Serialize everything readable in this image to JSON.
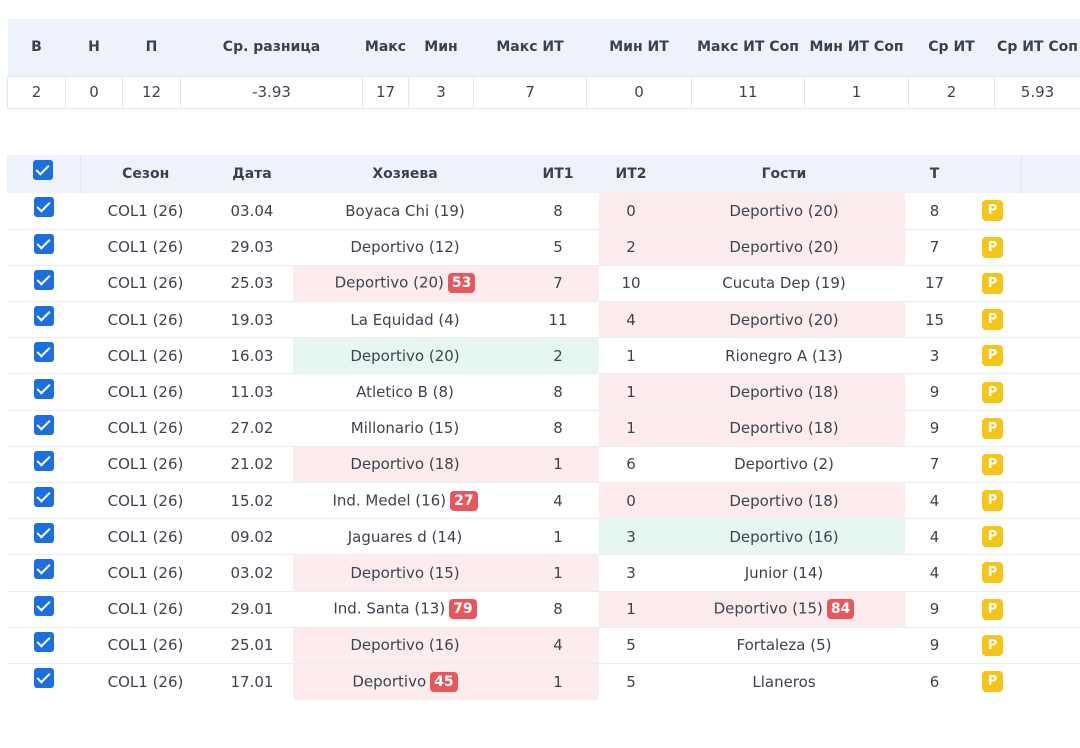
{
  "summary": {
    "headers": [
      "В",
      "Н",
      "П",
      "Ср. разница",
      "Макс",
      "Мин",
      "Макс ИТ",
      "Мин ИТ",
      "Макс ИТ Соп",
      "Мин ИТ Соп",
      "Ср ИТ",
      "Ср ИТ Соп"
    ],
    "values": [
      "2",
      "0",
      "12",
      "-3.93",
      "17",
      "3",
      "7",
      "0",
      "11",
      "1",
      "2",
      "5.93"
    ]
  },
  "matches": {
    "headers": {
      "season": "Сезон",
      "date": "Дата",
      "home": "Хозяева",
      "it1": "ИТ1",
      "it2": "ИТ2",
      "away": "Гости",
      "total": "Т"
    },
    "p_label": "P",
    "colors": {
      "highlight_red": "#fdeced",
      "highlight_green": "#e6f7f1",
      "badge_red": "#e8575c",
      "p_badge": "#f5c518",
      "checkbox": "#1b6fe0"
    },
    "rows": [
      {
        "season": "COL1 (26)",
        "date": "03.04",
        "home": "Boyaca Chi (19)",
        "home_badge": "",
        "it1": "8",
        "it2": "0",
        "away": "Deportivo  (20)",
        "away_badge": "",
        "total": "8",
        "highlight": "away",
        "highlight_color": "red"
      },
      {
        "season": "COL1 (26)",
        "date": "29.03",
        "home": "Deportivo  (12)",
        "home_badge": "",
        "it1": "5",
        "it2": "2",
        "away": "Deportivo  (20)",
        "away_badge": "",
        "total": "7",
        "highlight": "away",
        "highlight_color": "red"
      },
      {
        "season": "COL1 (26)",
        "date": "25.03",
        "home": "Deportivo  (20)",
        "home_badge": "53",
        "it1": "7",
        "it2": "10",
        "away": "Cucuta Dep (19)",
        "away_badge": "",
        "total": "17",
        "highlight": "home",
        "highlight_color": "red"
      },
      {
        "season": "COL1 (26)",
        "date": "19.03",
        "home": "La Equidad (4)",
        "home_badge": "",
        "it1": "11",
        "it2": "4",
        "away": "Deportivo  (20)",
        "away_badge": "",
        "total": "15",
        "highlight": "away",
        "highlight_color": "red"
      },
      {
        "season": "COL1 (26)",
        "date": "16.03",
        "home": "Deportivo  (20)",
        "home_badge": "",
        "it1": "2",
        "it2": "1",
        "away": "Rionegro A (13)",
        "away_badge": "",
        "total": "3",
        "highlight": "home",
        "highlight_color": "green"
      },
      {
        "season": "COL1 (26)",
        "date": "11.03",
        "home": "Atletico B (8)",
        "home_badge": "",
        "it1": "8",
        "it2": "1",
        "away": "Deportivo  (18)",
        "away_badge": "",
        "total": "9",
        "highlight": "away",
        "highlight_color": "red"
      },
      {
        "season": "COL1 (26)",
        "date": "27.02",
        "home": "Millonario (15)",
        "home_badge": "",
        "it1": "8",
        "it2": "1",
        "away": "Deportivo  (18)",
        "away_badge": "",
        "total": "9",
        "highlight": "away",
        "highlight_color": "red"
      },
      {
        "season": "COL1 (26)",
        "date": "21.02",
        "home": "Deportivo  (18)",
        "home_badge": "",
        "it1": "1",
        "it2": "6",
        "away": "Deportivo  (2)",
        "away_badge": "",
        "total": "7",
        "highlight": "home",
        "highlight_color": "red"
      },
      {
        "season": "COL1 (26)",
        "date": "15.02",
        "home": "Ind. Medel (16)",
        "home_badge": "27",
        "it1": "4",
        "it2": "0",
        "away": "Deportivo  (18)",
        "away_badge": "",
        "total": "4",
        "highlight": "away",
        "highlight_color": "red"
      },
      {
        "season": "COL1 (26)",
        "date": "09.02",
        "home": "Jaguares d (14)",
        "home_badge": "",
        "it1": "1",
        "it2": "3",
        "away": "Deportivo  (16)",
        "away_badge": "",
        "total": "4",
        "highlight": "away",
        "highlight_color": "green"
      },
      {
        "season": "COL1 (26)",
        "date": "03.02",
        "home": "Deportivo  (15)",
        "home_badge": "",
        "it1": "1",
        "it2": "3",
        "away": "Junior (14)",
        "away_badge": "",
        "total": "4",
        "highlight": "home",
        "highlight_color": "red"
      },
      {
        "season": "COL1 (26)",
        "date": "29.01",
        "home": "Ind. Santa (13)",
        "home_badge": "79",
        "it1": "8",
        "it2": "1",
        "away": "Deportivo  (15)",
        "away_badge": "84",
        "total": "9",
        "highlight": "away",
        "highlight_color": "red"
      },
      {
        "season": "COL1 (26)",
        "date": "25.01",
        "home": "Deportivo  (16)",
        "home_badge": "",
        "it1": "4",
        "it2": "5",
        "away": "Fortaleza (5)",
        "away_badge": "",
        "total": "9",
        "highlight": "home",
        "highlight_color": "red"
      },
      {
        "season": "COL1 (26)",
        "date": "17.01",
        "home": "Deportivo",
        "home_badge": "45",
        "it1": "1",
        "it2": "5",
        "away": "Llaneros",
        "away_badge": "",
        "total": "6",
        "highlight": "home",
        "highlight_color": "red"
      }
    ]
  }
}
